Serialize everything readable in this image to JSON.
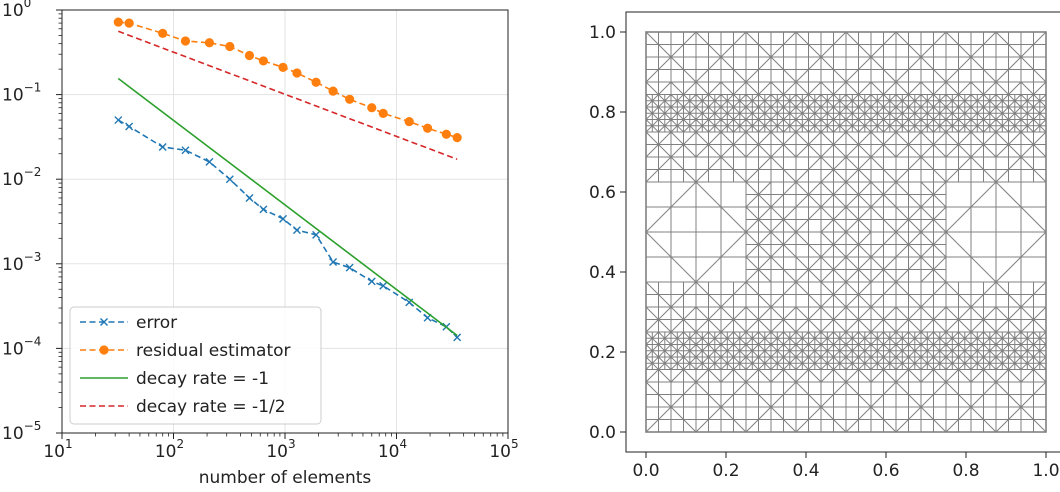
{
  "chart_data": [
    {
      "type": "line",
      "title": "",
      "xlabel": "number of elements",
      "ylabel": "",
      "xscale": "log",
      "yscale": "log",
      "xlim": [
        10,
        100000
      ],
      "ylim": [
        1e-05,
        1
      ],
      "grid": true,
      "legend_position": "lower-left",
      "x_tick_labels": [
        {
          "value": 10,
          "base": "10",
          "exp": "1"
        },
        {
          "value": 100,
          "base": "10",
          "exp": "2"
        },
        {
          "value": 1000,
          "base": "10",
          "exp": "3"
        },
        {
          "value": 10000,
          "base": "10",
          "exp": "4"
        },
        {
          "value": 100000,
          "base": "10",
          "exp": "5"
        }
      ],
      "y_tick_labels": [
        {
          "value": 1e-05,
          "base": "10",
          "exp": "−5"
        },
        {
          "value": 0.0001,
          "base": "10",
          "exp": "−4"
        },
        {
          "value": 0.001,
          "base": "10",
          "exp": "−3"
        },
        {
          "value": 0.01,
          "base": "10",
          "exp": "−2"
        },
        {
          "value": 0.1,
          "base": "10",
          "exp": "−1"
        },
        {
          "value": 1,
          "base": "10",
          "exp": "0"
        }
      ],
      "series": [
        {
          "name": "error",
          "color": "#1f77b4",
          "line_style": "dashed",
          "marker": "x",
          "x": [
            32,
            40,
            80,
            128,
            210,
            320,
            480,
            640,
            960,
            1280,
            1900,
            2700,
            3800,
            6000,
            7600,
            13000,
            19000,
            28000,
            35000
          ],
          "y": [
            0.05,
            0.042,
            0.024,
            0.022,
            0.016,
            0.01,
            0.006,
            0.0044,
            0.0034,
            0.0025,
            0.0022,
            0.00105,
            0.0009,
            0.00062,
            0.00055,
            0.00035,
            0.00023,
            0.00018,
            0.000135
          ]
        },
        {
          "name": "residual estimator",
          "color": "#ff7f0e",
          "line_style": "dashed",
          "marker": "o",
          "x": [
            32,
            40,
            80,
            128,
            210,
            320,
            480,
            640,
            960,
            1280,
            1900,
            2700,
            3800,
            6000,
            7600,
            13000,
            19000,
            28000,
            35000
          ],
          "y": [
            0.72,
            0.7,
            0.53,
            0.43,
            0.41,
            0.37,
            0.29,
            0.25,
            0.21,
            0.18,
            0.14,
            0.11,
            0.088,
            0.07,
            0.06,
            0.048,
            0.04,
            0.034,
            0.031
          ]
        },
        {
          "name": "decay rate = -1",
          "color": "#2ca02c",
          "line_style": "solid",
          "marker": "none",
          "x": [
            32,
            35000
          ],
          "y": [
            0.155,
            0.000142
          ]
        },
        {
          "name": "decay rate = -1/2",
          "color": "#d62728",
          "line_style": "dashed",
          "marker": "none",
          "x": [
            32,
            35000
          ],
          "y": [
            0.56,
            0.0172
          ]
        }
      ]
    },
    {
      "type": "mesh",
      "title": "",
      "xlim": [
        0,
        1
      ],
      "ylim": [
        0,
        1
      ],
      "x_ticks": [
        "0.0",
        "0.2",
        "0.4",
        "0.6",
        "0.8",
        "1.0"
      ],
      "y_ticks": [
        "0.0",
        "0.2",
        "0.4",
        "0.6",
        "0.8",
        "1.0"
      ],
      "mesh_color": "#808080",
      "refined_bands_y": [
        0.2,
        0.8
      ]
    }
  ]
}
